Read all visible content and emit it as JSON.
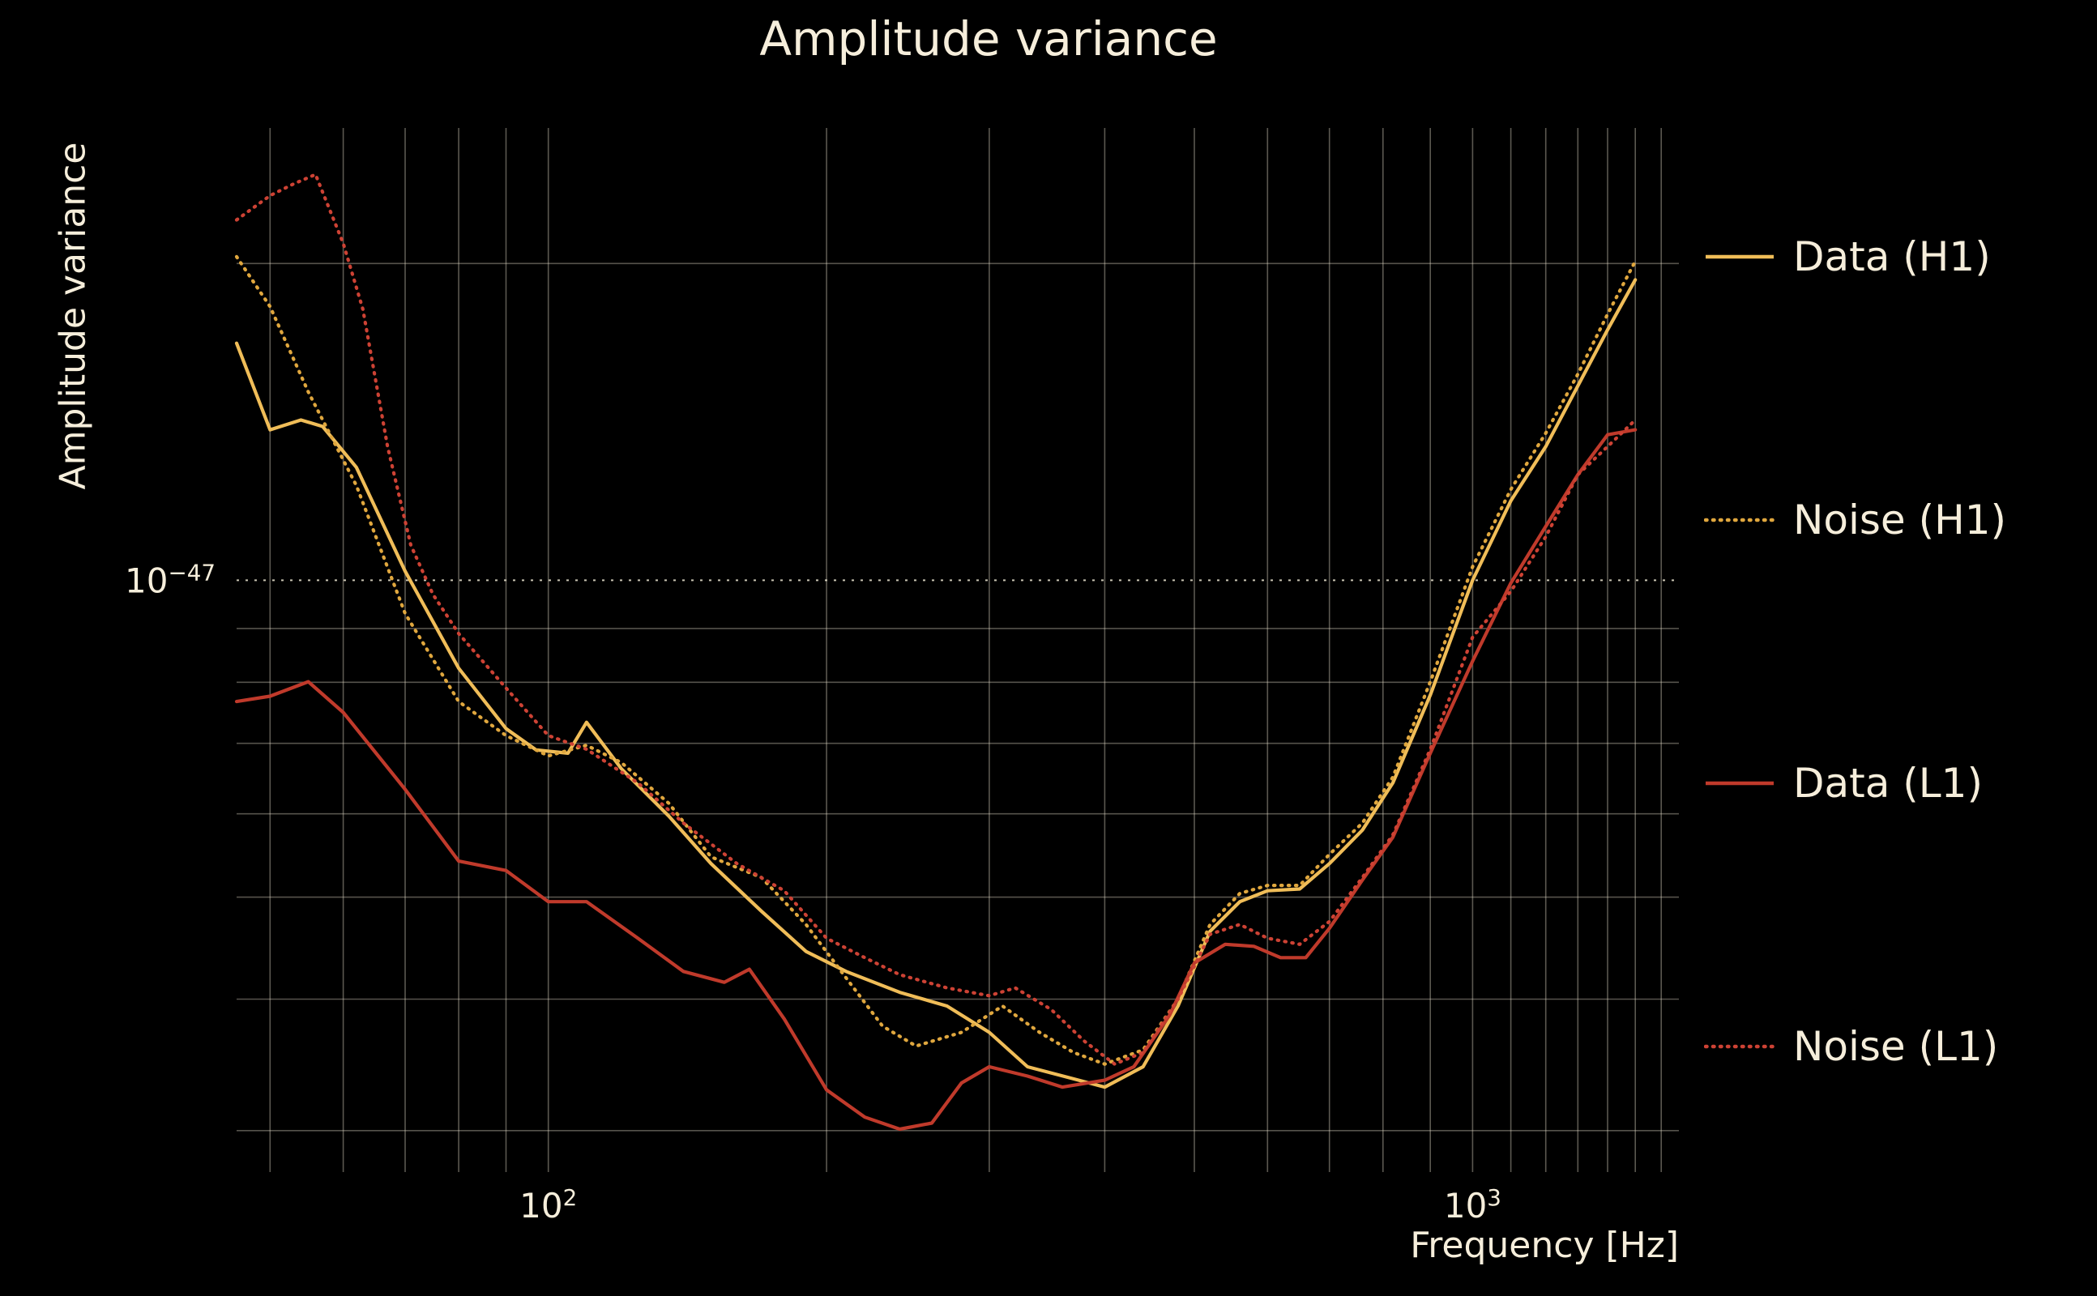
{
  "colors": {
    "background": "#000000",
    "text": "#f6eedb",
    "grid": "#efe7d3"
  },
  "chart_data": {
    "type": "line",
    "title": "Amplitude variance",
    "xlabel": "Frequency [Hz]",
    "ylabel": "Amplitude variance",
    "xscale": "log",
    "yscale": "log",
    "xlim": [
      46,
      1672
    ],
    "ylim": [
      2.74e-48,
      2.69e-47
    ],
    "value_scale": 1e-48,
    "legend_position": "right-outside",
    "x_ticks": [
      {
        "value": 100,
        "label": "10^2"
      },
      {
        "value": 1000,
        "label": "10^3"
      }
    ],
    "y_ticks": [
      {
        "value_scaled": 10,
        "label": "10^−47"
      }
    ],
    "grid": {
      "x_lines": [
        50,
        60,
        70,
        80,
        90,
        100,
        200,
        300,
        400,
        500,
        600,
        700,
        800,
        900,
        1000,
        1100,
        1200,
        1300,
        1400,
        1500,
        1600
      ],
      "y_lines_scaled": [
        3,
        4,
        5,
        6,
        7,
        8,
        9,
        10,
        20
      ],
      "major_y_scaled": 10
    },
    "series": [
      {
        "name": "Data (H1)",
        "color": "#f0bd58",
        "line_style": "solid",
        "points_unit": "x = Hz, y = value × 1e-48",
        "points": [
          [
            46,
            16.8
          ],
          [
            50,
            13.9
          ],
          [
            54,
            14.2
          ],
          [
            57,
            14.0
          ],
          [
            62,
            12.8
          ],
          [
            70,
            10.2
          ],
          [
            80,
            8.25
          ],
          [
            90,
            7.23
          ],
          [
            97,
            6.9
          ],
          [
            105,
            6.85
          ],
          [
            110,
            7.33
          ],
          [
            120,
            6.62
          ],
          [
            135,
            5.97
          ],
          [
            150,
            5.38
          ],
          [
            170,
            4.85
          ],
          [
            190,
            4.44
          ],
          [
            210,
            4.25
          ],
          [
            240,
            4.06
          ],
          [
            270,
            3.94
          ],
          [
            300,
            3.72
          ],
          [
            330,
            3.45
          ],
          [
            370,
            3.36
          ],
          [
            400,
            3.3
          ],
          [
            440,
            3.45
          ],
          [
            480,
            3.94
          ],
          [
            520,
            4.64
          ],
          [
            560,
            4.95
          ],
          [
            600,
            5.07
          ],
          [
            650,
            5.09
          ],
          [
            700,
            5.38
          ],
          [
            760,
            5.79
          ],
          [
            820,
            6.42
          ],
          [
            900,
            7.78
          ],
          [
            1000,
            10.0
          ],
          [
            1100,
            11.9
          ],
          [
            1200,
            13.4
          ],
          [
            1300,
            15.3
          ],
          [
            1400,
            17.3
          ],
          [
            1500,
            19.3
          ]
        ]
      },
      {
        "name": "Noise (H1)",
        "color": "#e0a73e",
        "line_style": "dotted",
        "points_unit": "x = Hz, y = value × 1e-48",
        "points": [
          [
            46,
            20.3
          ],
          [
            50,
            18.2
          ],
          [
            55,
            15.1
          ],
          [
            62,
            12.3
          ],
          [
            70,
            9.3
          ],
          [
            80,
            7.67
          ],
          [
            90,
            7.12
          ],
          [
            100,
            6.81
          ],
          [
            110,
            6.97
          ],
          [
            120,
            6.71
          ],
          [
            135,
            6.14
          ],
          [
            150,
            5.46
          ],
          [
            170,
            5.22
          ],
          [
            190,
            4.71
          ],
          [
            210,
            4.19
          ],
          [
            230,
            3.77
          ],
          [
            250,
            3.61
          ],
          [
            280,
            3.72
          ],
          [
            310,
            3.94
          ],
          [
            340,
            3.72
          ],
          [
            370,
            3.56
          ],
          [
            400,
            3.47
          ],
          [
            440,
            3.58
          ],
          [
            480,
            4.0
          ],
          [
            520,
            4.71
          ],
          [
            560,
            5.04
          ],
          [
            600,
            5.13
          ],
          [
            650,
            5.13
          ],
          [
            700,
            5.49
          ],
          [
            760,
            5.88
          ],
          [
            820,
            6.5
          ],
          [
            900,
            8.01
          ],
          [
            1000,
            10.3
          ],
          [
            1100,
            12.2
          ],
          [
            1200,
            13.8
          ],
          [
            1300,
            15.7
          ],
          [
            1400,
            17.9
          ],
          [
            1500,
            20.1
          ]
        ]
      },
      {
        "name": "Data (L1)",
        "color": "#c03a2b",
        "line_style": "solid",
        "points_unit": "x = Hz, y = value × 1e-48",
        "points": [
          [
            46,
            7.67
          ],
          [
            50,
            7.76
          ],
          [
            55,
            8.01
          ],
          [
            60,
            7.49
          ],
          [
            70,
            6.33
          ],
          [
            80,
            5.41
          ],
          [
            90,
            5.3
          ],
          [
            100,
            4.95
          ],
          [
            110,
            4.95
          ],
          [
            125,
            4.57
          ],
          [
            140,
            4.25
          ],
          [
            155,
            4.15
          ],
          [
            165,
            4.27
          ],
          [
            180,
            3.83
          ],
          [
            200,
            3.28
          ],
          [
            220,
            3.09
          ],
          [
            240,
            3.01
          ],
          [
            260,
            3.05
          ],
          [
            280,
            3.33
          ],
          [
            300,
            3.45
          ],
          [
            330,
            3.38
          ],
          [
            360,
            3.3
          ],
          [
            400,
            3.35
          ],
          [
            430,
            3.45
          ],
          [
            470,
            3.86
          ],
          [
            500,
            4.33
          ],
          [
            540,
            4.51
          ],
          [
            580,
            4.49
          ],
          [
            620,
            4.38
          ],
          [
            660,
            4.38
          ],
          [
            700,
            4.67
          ],
          [
            760,
            5.19
          ],
          [
            820,
            5.7
          ],
          [
            900,
            6.85
          ],
          [
            1000,
            8.38
          ],
          [
            1100,
            9.94
          ],
          [
            1200,
            11.25
          ],
          [
            1300,
            12.6
          ],
          [
            1400,
            13.75
          ],
          [
            1500,
            13.9
          ]
        ]
      },
      {
        "name": "Noise (L1)",
        "color": "#cd4234",
        "line_style": "dotted",
        "points_unit": "x = Hz, y = value × 1e-48",
        "points": [
          [
            46,
            22.0
          ],
          [
            50,
            23.2
          ],
          [
            53,
            23.8
          ],
          [
            56,
            24.3
          ],
          [
            60,
            20.9
          ],
          [
            63,
            18.1
          ],
          [
            67,
            13.4
          ],
          [
            71,
            10.8
          ],
          [
            75,
            9.7
          ],
          [
            80,
            8.9
          ],
          [
            90,
            7.9
          ],
          [
            100,
            7.12
          ],
          [
            110,
            6.91
          ],
          [
            125,
            6.42
          ],
          [
            140,
            5.88
          ],
          [
            160,
            5.38
          ],
          [
            180,
            5.07
          ],
          [
            200,
            4.57
          ],
          [
            220,
            4.38
          ],
          [
            240,
            4.22
          ],
          [
            270,
            4.1
          ],
          [
            300,
            4.03
          ],
          [
            320,
            4.1
          ],
          [
            350,
            3.91
          ],
          [
            380,
            3.65
          ],
          [
            410,
            3.47
          ],
          [
            440,
            3.56
          ],
          [
            480,
            4.0
          ],
          [
            520,
            4.61
          ],
          [
            560,
            4.71
          ],
          [
            600,
            4.57
          ],
          [
            650,
            4.51
          ],
          [
            700,
            4.74
          ],
          [
            760,
            5.22
          ],
          [
            820,
            5.73
          ],
          [
            900,
            6.91
          ],
          [
            1000,
            8.83
          ],
          [
            1100,
            9.76
          ],
          [
            1200,
            11.0
          ],
          [
            1300,
            12.6
          ],
          [
            1400,
            13.4
          ],
          [
            1500,
            14.2
          ]
        ]
      }
    ]
  }
}
